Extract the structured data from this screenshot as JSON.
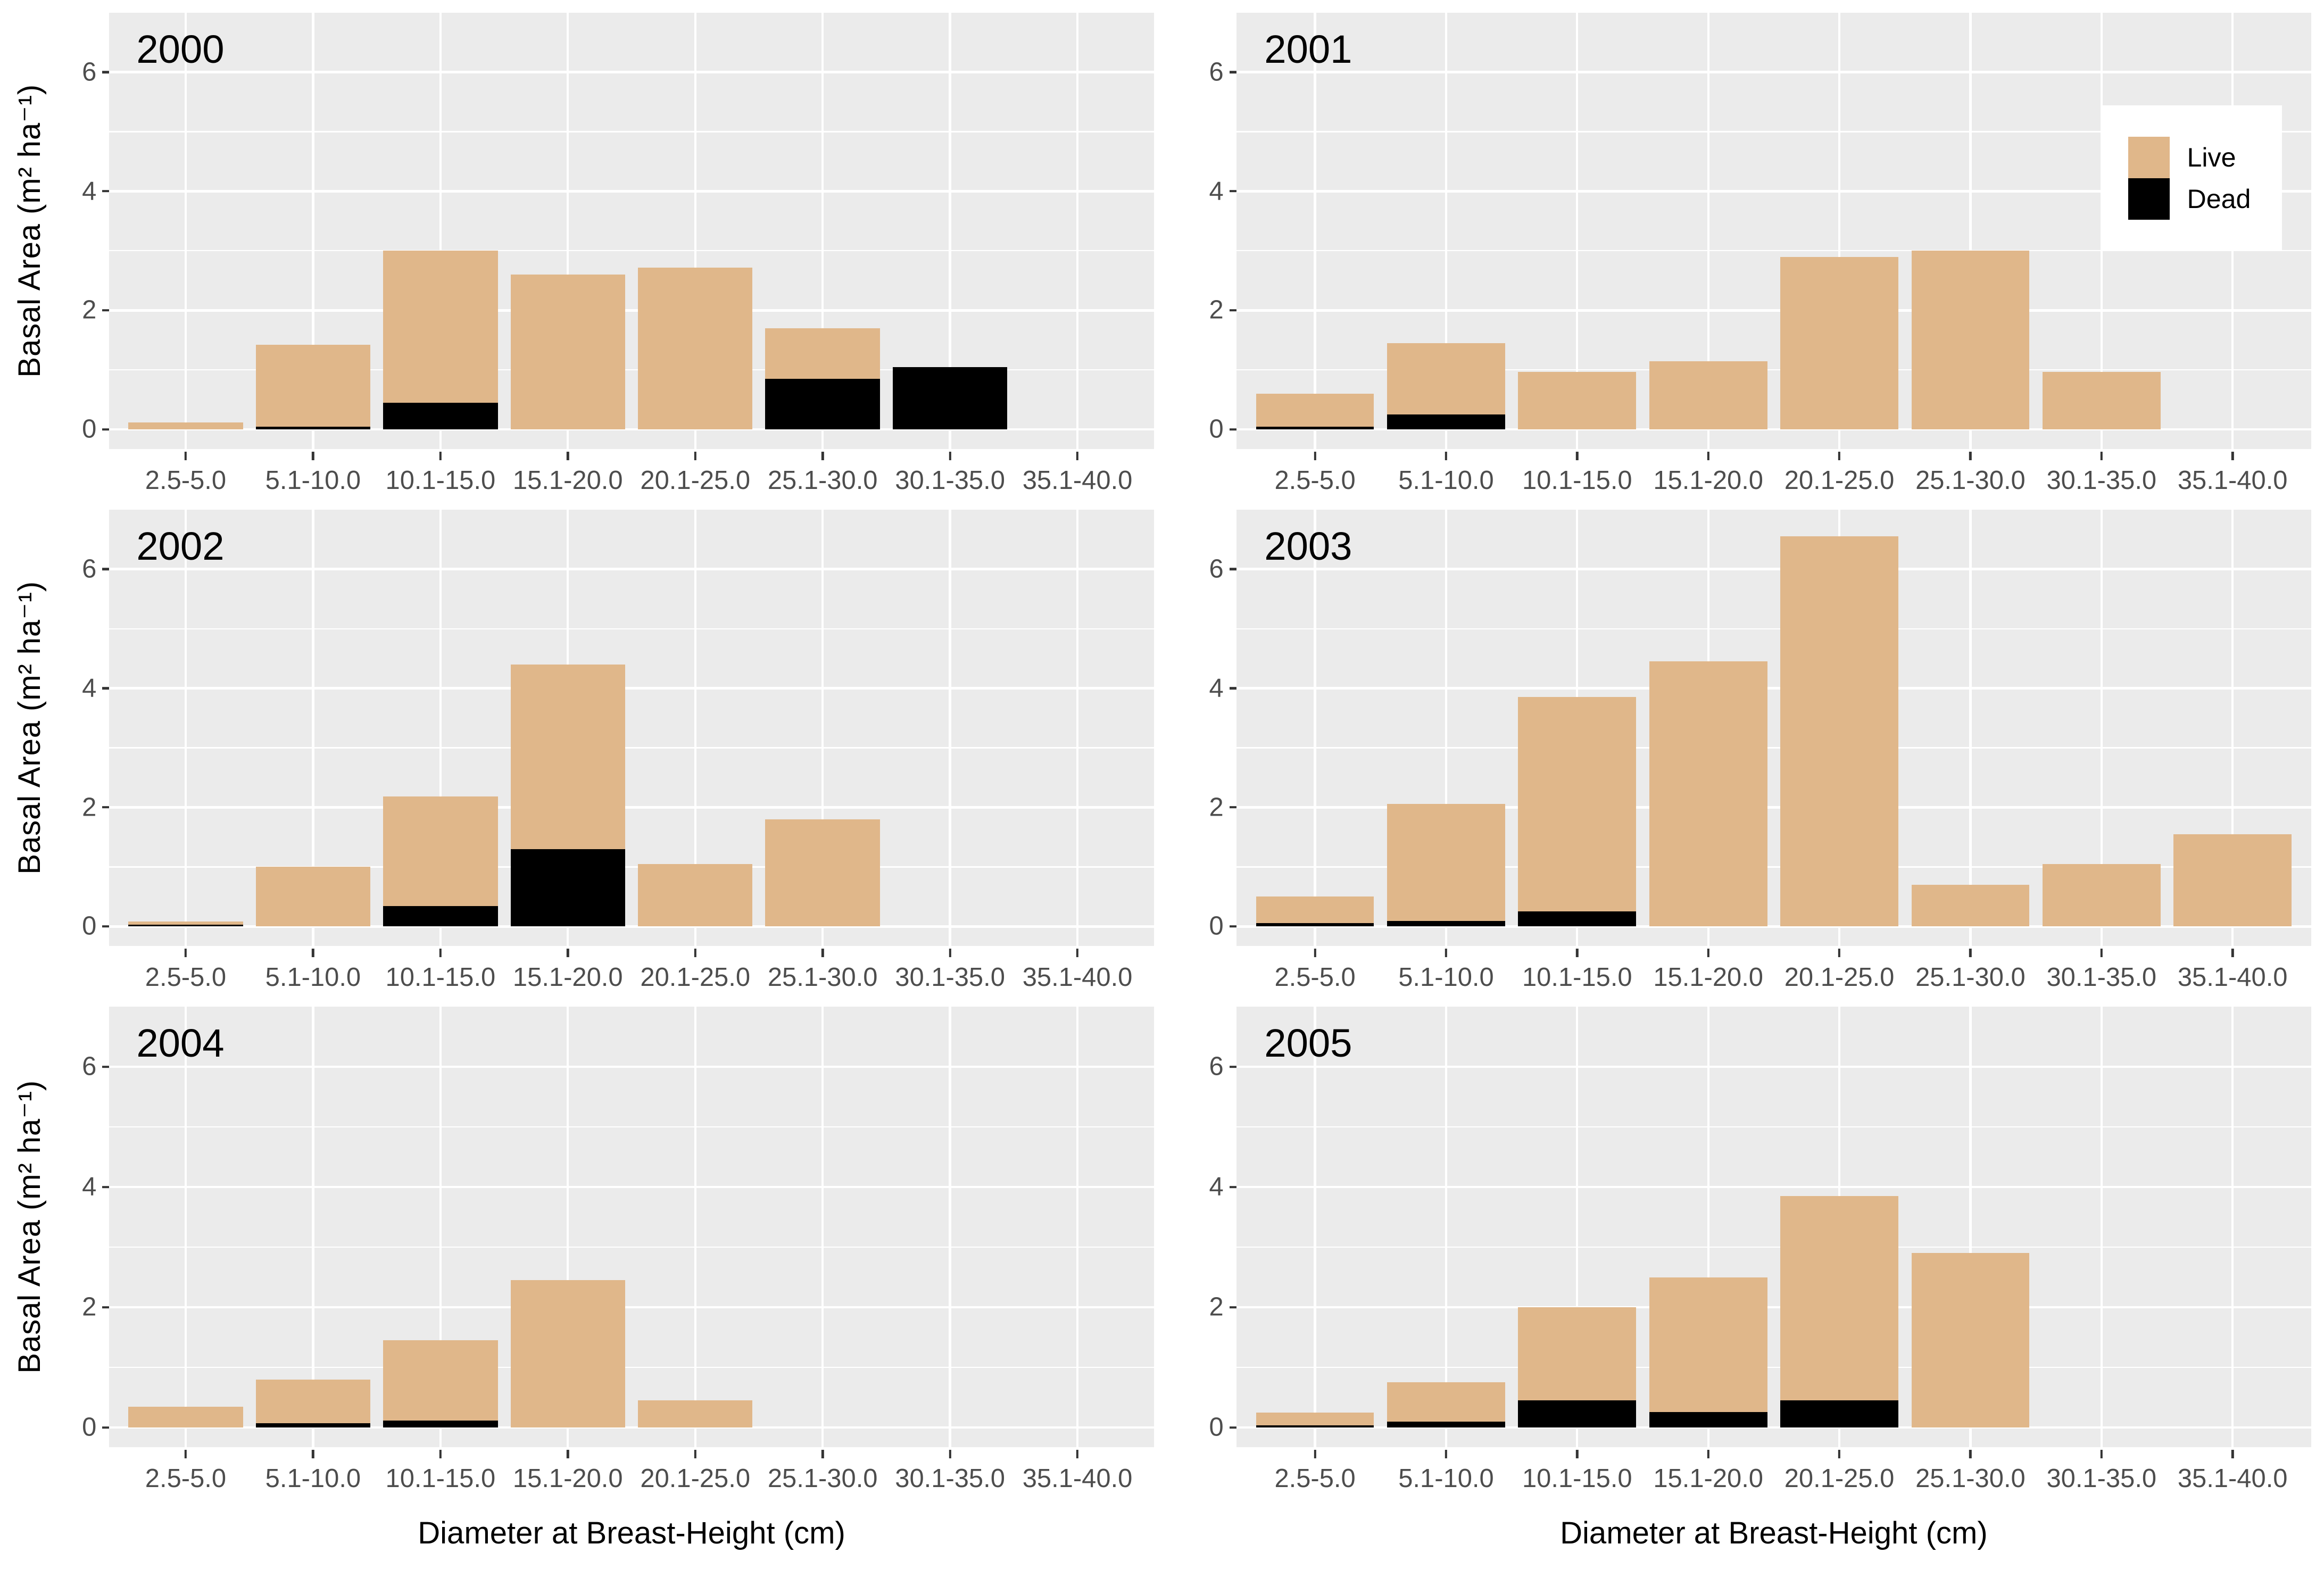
{
  "figure": {
    "y_axis_title": "Basal Area (m² ha⁻¹)",
    "x_axis_title": "Diameter at Breast-Height (cm)"
  },
  "legend": {
    "items": [
      {
        "label": "Live",
        "color": "#E0B78A"
      },
      {
        "label": "Dead",
        "color": "#000000"
      }
    ]
  },
  "chart_data": {
    "type": "bar",
    "stacked": true,
    "facet_layout": "2 columns x 3 rows by year",
    "xlabel": "Diameter at Breast-Height (cm)",
    "ylabel": "Basal Area (m² ha⁻¹)",
    "categories": [
      "2.5-5.0",
      "5.1-10.0",
      "10.1-15.0",
      "15.1-20.0",
      "20.1-25.0",
      "25.1-30.0",
      "30.1-35.0",
      "35.1-40.0"
    ],
    "y_ticks": [
      0,
      2,
      4,
      6
    ],
    "y_minor_ticks": [
      1,
      3,
      5
    ],
    "ylim": [
      -0.33,
      7.0
    ],
    "grid": "white major and minor horizontal gridlines, white vertical gridlines at category centers, grey panel background",
    "legend_position": "inside top-right of 2001 panel",
    "panels": [
      {
        "year": "2000",
        "series": {
          "dead": [
            0,
            0.05,
            0.45,
            0,
            0,
            0.85,
            1.05,
            0
          ],
          "live": [
            0.12,
            1.37,
            2.55,
            2.6,
            2.72,
            0.85,
            0,
            0
          ]
        },
        "totals": [
          0.12,
          1.42,
          3.0,
          2.6,
          2.72,
          1.7,
          1.05,
          0
        ]
      },
      {
        "year": "2001",
        "series": {
          "dead": [
            0.05,
            0.25,
            0,
            0,
            0,
            0,
            0,
            0
          ],
          "live": [
            0.55,
            1.2,
            0.97,
            1.15,
            2.9,
            3.0,
            0.97,
            0
          ]
        },
        "totals": [
          0.6,
          1.45,
          0.97,
          1.15,
          2.9,
          3.0,
          0.97,
          0
        ]
      },
      {
        "year": "2002",
        "series": {
          "dead": [
            0.03,
            0,
            0.34,
            1.3,
            0,
            0,
            0,
            0
          ],
          "live": [
            0.05,
            1.0,
            1.84,
            3.1,
            1.05,
            1.8,
            0,
            0
          ]
        },
        "totals": [
          0.08,
          1.0,
          2.18,
          4.4,
          1.05,
          1.8,
          0,
          0
        ]
      },
      {
        "year": "2003",
        "series": {
          "dead": [
            0.06,
            0.09,
            0.25,
            0,
            0,
            0,
            0,
            0
          ],
          "live": [
            0.44,
            1.97,
            3.6,
            4.45,
            6.55,
            0.7,
            1.05,
            1.55
          ]
        },
        "totals": [
          0.5,
          2.06,
          3.85,
          4.45,
          6.55,
          0.7,
          1.05,
          1.55
        ]
      },
      {
        "year": "2004",
        "series": {
          "dead": [
            0,
            0.07,
            0.12,
            0,
            0,
            0,
            0,
            0
          ],
          "live": [
            0.35,
            0.73,
            1.33,
            2.45,
            0.45,
            0,
            0,
            0
          ]
        },
        "totals": [
          0.35,
          0.8,
          1.45,
          2.45,
          0.45,
          0,
          0,
          0
        ]
      },
      {
        "year": "2005",
        "series": {
          "dead": [
            0.04,
            0.1,
            0.45,
            0.26,
            0.45,
            0,
            0,
            0
          ],
          "live": [
            0.21,
            0.65,
            1.55,
            2.24,
            3.4,
            2.9,
            0,
            0
          ]
        },
        "totals": [
          0.25,
          0.75,
          2.0,
          2.5,
          3.85,
          2.9,
          0,
          0
        ]
      }
    ],
    "colors": {
      "live": "#E0B78A",
      "dead": "#000000",
      "panel_bg": "#EBEBEB",
      "gridline": "#FFFFFF",
      "tick_text": "#4D4D4D",
      "label_text": "#000000"
    }
  }
}
